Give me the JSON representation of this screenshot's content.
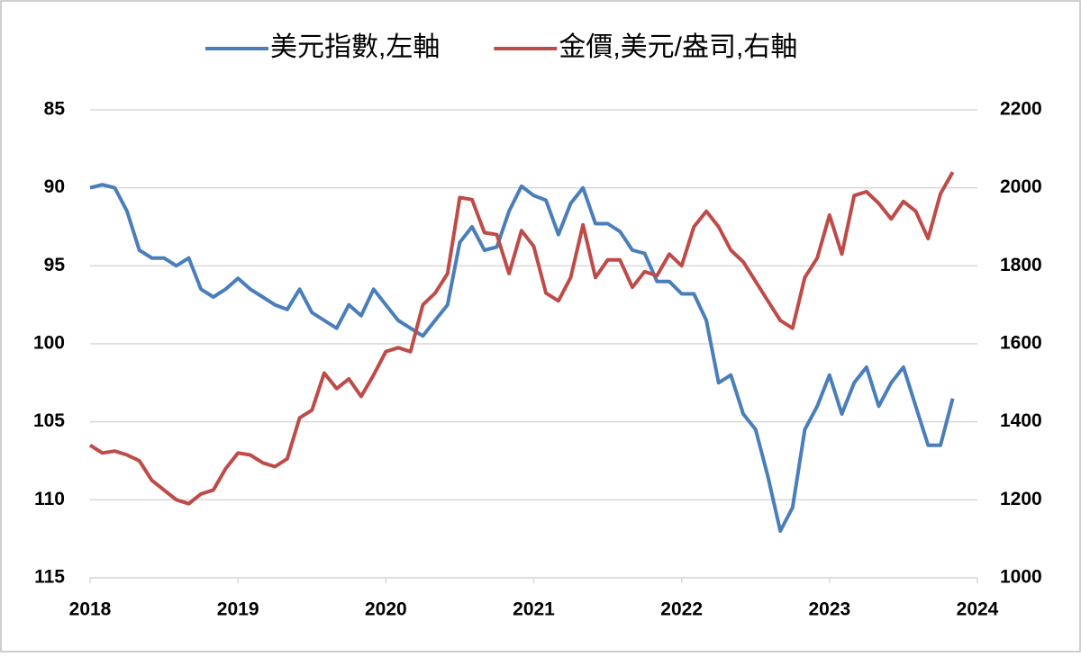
{
  "chart_data": {
    "type": "line",
    "x": [
      2018,
      2018.083,
      2018.167,
      2018.25,
      2018.333,
      2018.417,
      2018.5,
      2018.583,
      2018.667,
      2018.75,
      2018.833,
      2018.917,
      2019,
      2019.083,
      2019.167,
      2019.25,
      2019.333,
      2019.417,
      2019.5,
      2019.583,
      2019.667,
      2019.75,
      2019.833,
      2019.917,
      2020,
      2020.083,
      2020.167,
      2020.25,
      2020.333,
      2020.417,
      2020.5,
      2020.583,
      2020.667,
      2020.75,
      2020.833,
      2020.917,
      2021,
      2021.083,
      2021.167,
      2021.25,
      2021.333,
      2021.417,
      2021.5,
      2021.583,
      2021.667,
      2021.75,
      2021.833,
      2021.917,
      2022,
      2022.083,
      2022.167,
      2022.25,
      2022.333,
      2022.417,
      2022.5,
      2022.583,
      2022.667,
      2022.75,
      2022.833,
      2022.917,
      2023,
      2023.083,
      2023.167,
      2023.25,
      2023.333,
      2023.417,
      2023.5,
      2023.583,
      2023.667,
      2023.75,
      2023.833
    ],
    "series": [
      {
        "name": "美元指數,左軸",
        "color": "#4a7ebb",
        "axis": "y",
        "values": [
          90.0,
          89.8,
          90.0,
          91.5,
          94.0,
          94.5,
          94.5,
          95.0,
          94.5,
          96.5,
          97.0,
          96.5,
          95.8,
          96.5,
          97.0,
          97.5,
          97.8,
          96.5,
          98.0,
          98.5,
          99.0,
          97.5,
          98.2,
          96.5,
          97.5,
          98.5,
          99.0,
          99.5,
          98.5,
          97.5,
          93.5,
          92.5,
          94.0,
          93.8,
          91.5,
          89.9,
          90.5,
          90.8,
          93.0,
          91.0,
          90.0,
          92.3,
          92.3,
          92.8,
          94.0,
          94.2,
          96.0,
          96.0,
          96.8,
          96.8,
          98.5,
          102.5,
          102.0,
          104.5,
          105.5,
          108.5,
          112.0,
          110.5,
          105.5,
          104.0,
          102.0,
          104.5,
          102.5,
          101.5,
          104.0,
          102.5,
          101.5,
          104.0,
          106.5,
          106.5,
          103.5
        ]
      },
      {
        "name": "金價,美元/盎司,右軸",
        "color": "#be4b48",
        "axis": "y2",
        "values": [
          1340,
          1320,
          1325,
          1315,
          1300,
          1250,
          1225,
          1200,
          1190,
          1215,
          1225,
          1280,
          1320,
          1315,
          1295,
          1285,
          1305,
          1410,
          1430,
          1525,
          1485,
          1510,
          1465,
          1520,
          1580,
          1590,
          1580,
          1700,
          1730,
          1780,
          1975,
          1970,
          1885,
          1880,
          1780,
          1890,
          1850,
          1730,
          1710,
          1770,
          1905,
          1770,
          1815,
          1815,
          1745,
          1785,
          1775,
          1830,
          1800,
          1900,
          1940,
          1900,
          1840,
          1810,
          1760,
          1710,
          1660,
          1640,
          1770,
          1820,
          1930,
          1830,
          1980,
          1990,
          1960,
          1920,
          1965,
          1940,
          1870,
          1985,
          2040
        ]
      }
    ],
    "xlim": [
      2018,
      2024
    ],
    "xticks": [
      2018,
      2019,
      2020,
      2021,
      2022,
      2023,
      2024
    ],
    "ylim": [
      85,
      115
    ],
    "y_reversed": true,
    "yticks": [
      85,
      90,
      95,
      100,
      105,
      110,
      115
    ],
    "y2lim": [
      1000,
      2200
    ],
    "y2ticks": [
      2200,
      2000,
      1800,
      1600,
      1400,
      1200,
      1000
    ],
    "grid": true,
    "legend": "top"
  }
}
